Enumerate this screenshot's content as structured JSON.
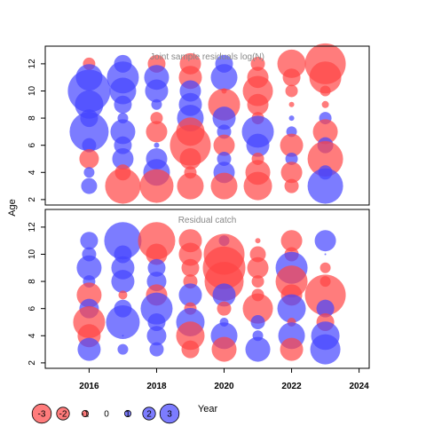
{
  "chart_data": {
    "type": "scatter",
    "description_free": true,
    "shared_x_label": "Year",
    "shared_y_label": "Age",
    "x_ticks": [
      2016,
      2018,
      2020,
      2022,
      2024
    ],
    "xlim": [
      2014.7,
      2024.3
    ],
    "y_ticks": [
      2,
      4,
      6,
      8,
      10,
      12
    ],
    "ylim": [
      1.6,
      13.3
    ],
    "colors": {
      "positive": "#4444ff",
      "negative": "#ff4444",
      "frame": "#000000",
      "title": "#888888"
    },
    "panels": [
      {
        "title": "Joint sample residuals log(N)",
        "points": [
          {
            "x": 2016,
            "y": 12,
            "r": -0.7
          },
          {
            "x": 2016,
            "y": 11,
            "r": 1.5
          },
          {
            "x": 2016,
            "y": 10,
            "r": 2.4
          },
          {
            "x": 2016,
            "y": 9,
            "r": 1.6
          },
          {
            "x": 2016,
            "y": 8,
            "r": 1.0
          },
          {
            "x": 2016,
            "y": 7,
            "r": 2.2
          },
          {
            "x": 2016,
            "y": 6,
            "r": 0.8
          },
          {
            "x": 2016,
            "y": 5,
            "r": -1.1
          },
          {
            "x": 2016,
            "y": 4,
            "r": 0.6
          },
          {
            "x": 2016,
            "y": 3,
            "r": 0.9
          },
          {
            "x": 2017,
            "y": 12,
            "r": 1.0
          },
          {
            "x": 2017,
            "y": 11,
            "r": 1.8
          },
          {
            "x": 2017,
            "y": 10,
            "r": 1.5
          },
          {
            "x": 2017,
            "y": 9,
            "r": 1.0
          },
          {
            "x": 2017,
            "y": 8,
            "r": 0.6
          },
          {
            "x": 2017,
            "y": 7,
            "r": 1.4
          },
          {
            "x": 2017,
            "y": 6,
            "r": 1.0
          },
          {
            "x": 2017,
            "y": 5,
            "r": 1.2
          },
          {
            "x": 2017,
            "y": 4,
            "r": -0.9
          },
          {
            "x": 2017,
            "y": 3,
            "r": -2.0
          },
          {
            "x": 2018,
            "y": 12,
            "r": -1.0
          },
          {
            "x": 2018,
            "y": 11,
            "r": 1.4
          },
          {
            "x": 2018,
            "y": 10,
            "r": 1.3
          },
          {
            "x": 2018,
            "y": 9,
            "r": 0.6
          },
          {
            "x": 2018,
            "y": 8,
            "r": -0.7
          },
          {
            "x": 2018,
            "y": 7,
            "r": -1.2
          },
          {
            "x": 2018,
            "y": 6,
            "r": 0.3
          },
          {
            "x": 2018,
            "y": 5,
            "r": 1.2
          },
          {
            "x": 2018,
            "y": 4,
            "r": 1.5
          },
          {
            "x": 2018,
            "y": 3,
            "r": -1.9
          },
          {
            "x": 2019,
            "y": 12,
            "r": -1.2
          },
          {
            "x": 2019,
            "y": 11,
            "r": -1.3
          },
          {
            "x": 2019,
            "y": 10,
            "r": 1.2
          },
          {
            "x": 2019,
            "y": 9,
            "r": 1.3
          },
          {
            "x": 2019,
            "y": 8,
            "r": 1.5
          },
          {
            "x": 2019,
            "y": 7,
            "r": -1.6
          },
          {
            "x": 2019,
            "y": 6,
            "r": -2.3
          },
          {
            "x": 2019,
            "y": 5,
            "r": -1.2
          },
          {
            "x": 2019,
            "y": 4,
            "r": -0.7
          },
          {
            "x": 2019,
            "y": 3,
            "r": -1.5
          },
          {
            "x": 2020,
            "y": 12,
            "r": 1.0
          },
          {
            "x": 2020,
            "y": 11,
            "r": 1.5
          },
          {
            "x": 2020,
            "y": 10,
            "r": -0.3
          },
          {
            "x": 2020,
            "y": 9,
            "r": -1.8
          },
          {
            "x": 2020,
            "y": 8,
            "r": 1.3
          },
          {
            "x": 2020,
            "y": 7,
            "r": 0.8
          },
          {
            "x": 2020,
            "y": 6,
            "r": -1.2
          },
          {
            "x": 2020,
            "y": 5,
            "r": 0.8
          },
          {
            "x": 2020,
            "y": 4,
            "r": 1.2
          },
          {
            "x": 2020,
            "y": 3,
            "r": -1.5
          },
          {
            "x": 2021,
            "y": 12,
            "r": -0.8
          },
          {
            "x": 2021,
            "y": 11,
            "r": -1.2
          },
          {
            "x": 2021,
            "y": 10,
            "r": -1.7
          },
          {
            "x": 2021,
            "y": 9,
            "r": -1.2
          },
          {
            "x": 2021,
            "y": 8,
            "r": -0.7
          },
          {
            "x": 2021,
            "y": 7,
            "r": 1.8
          },
          {
            "x": 2021,
            "y": 6,
            "r": 1.3
          },
          {
            "x": 2021,
            "y": 5,
            "r": -0.7
          },
          {
            "x": 2021,
            "y": 4,
            "r": -1.4
          },
          {
            "x": 2021,
            "y": 3,
            "r": -1.6
          },
          {
            "x": 2022,
            "y": 12,
            "r": -1.6
          },
          {
            "x": 2022,
            "y": 11,
            "r": -1.0
          },
          {
            "x": 2022,
            "y": 10,
            "r": -0.7
          },
          {
            "x": 2022,
            "y": 9,
            "r": -0.3
          },
          {
            "x": 2022,
            "y": 8,
            "r": 0.3
          },
          {
            "x": 2022,
            "y": 7,
            "r": 0.6
          },
          {
            "x": 2022,
            "y": 6,
            "r": -1.3
          },
          {
            "x": 2022,
            "y": 5,
            "r": 0.7
          },
          {
            "x": 2022,
            "y": 4,
            "r": -1.2
          },
          {
            "x": 2022,
            "y": 3,
            "r": -0.8
          },
          {
            "x": 2023,
            "y": 12,
            "r": -2.3
          },
          {
            "x": 2023,
            "y": 11,
            "r": -1.8
          },
          {
            "x": 2023,
            "y": 10,
            "r": -0.6
          },
          {
            "x": 2023,
            "y": 9,
            "r": -0.4
          },
          {
            "x": 2023,
            "y": 8,
            "r": 0.7
          },
          {
            "x": 2023,
            "y": 7,
            "r": -1.4
          },
          {
            "x": 2023,
            "y": 6,
            "r": 0.9
          },
          {
            "x": 2023,
            "y": 5,
            "r": -2.0
          },
          {
            "x": 2023,
            "y": 4,
            "r": 0.8
          },
          {
            "x": 2023,
            "y": 3,
            "r": 2.0
          }
        ]
      },
      {
        "title": "Residual catch",
        "points": [
          {
            "x": 2016,
            "y": 11,
            "r": 1.0
          },
          {
            "x": 2016,
            "y": 10,
            "r": 0.8
          },
          {
            "x": 2016,
            "y": 9,
            "r": 1.4
          },
          {
            "x": 2016,
            "y": 8,
            "r": 0.7
          },
          {
            "x": 2016,
            "y": 7,
            "r": -1.4
          },
          {
            "x": 2016,
            "y": 6,
            "r": 1.1
          },
          {
            "x": 2016,
            "y": 5,
            "r": -1.8
          },
          {
            "x": 2016,
            "y": 4,
            "r": -1.3
          },
          {
            "x": 2016,
            "y": 3,
            "r": 1.3
          },
          {
            "x": 2017,
            "y": 11,
            "r": 2.1
          },
          {
            "x": 2017,
            "y": 10,
            "r": 1.0
          },
          {
            "x": 2017,
            "y": 9,
            "r": 1.3
          },
          {
            "x": 2017,
            "y": 8,
            "r": 1.3
          },
          {
            "x": 2017,
            "y": 7,
            "r": -0.5
          },
          {
            "x": 2017,
            "y": 6,
            "r": 1.0
          },
          {
            "x": 2017,
            "y": 5,
            "r": 1.9
          },
          {
            "x": 2017,
            "y": 4,
            "r": 0.1
          },
          {
            "x": 2017,
            "y": 3,
            "r": 0.6
          },
          {
            "x": 2018,
            "y": 11,
            "r": -2.1
          },
          {
            "x": 2018,
            "y": 10,
            "r": -1.2
          },
          {
            "x": 2018,
            "y": 9,
            "r": 1.0
          },
          {
            "x": 2018,
            "y": 8,
            "r": 1.1
          },
          {
            "x": 2018,
            "y": 7,
            "r": -1.2
          },
          {
            "x": 2018,
            "y": 6,
            "r": 1.8
          },
          {
            "x": 2018,
            "y": 5,
            "r": 1.0
          },
          {
            "x": 2018,
            "y": 4,
            "r": 1.1
          },
          {
            "x": 2018,
            "y": 3,
            "r": 0.8
          },
          {
            "x": 2019,
            "y": 11,
            "r": -1.3
          },
          {
            "x": 2019,
            "y": 10,
            "r": -1.3
          },
          {
            "x": 2019,
            "y": 9,
            "r": -1.0
          },
          {
            "x": 2019,
            "y": 8,
            "r": -0.8
          },
          {
            "x": 2019,
            "y": 7,
            "r": 1.3
          },
          {
            "x": 2019,
            "y": 6,
            "r": -0.7
          },
          {
            "x": 2019,
            "y": 5,
            "r": 1.6
          },
          {
            "x": 2019,
            "y": 4,
            "r": -1.6
          },
          {
            "x": 2019,
            "y": 3,
            "r": -1.0
          },
          {
            "x": 2020,
            "y": 11,
            "r": 0.6
          },
          {
            "x": 2020,
            "y": 10,
            "r": -2.3
          },
          {
            "x": 2020,
            "y": 9,
            "r": -2.4
          },
          {
            "x": 2020,
            "y": 8,
            "r": -2.2
          },
          {
            "x": 2020,
            "y": 7,
            "r": 1.3
          },
          {
            "x": 2020,
            "y": 6,
            "r": -0.8
          },
          {
            "x": 2020,
            "y": 5,
            "r": 0.5
          },
          {
            "x": 2020,
            "y": 4,
            "r": 1.5
          },
          {
            "x": 2020,
            "y": 3,
            "r": -1.4
          },
          {
            "x": 2021,
            "y": 11,
            "r": -0.3
          },
          {
            "x": 2021,
            "y": 10,
            "r": -0.9
          },
          {
            "x": 2021,
            "y": 9,
            "r": -1.2
          },
          {
            "x": 2021,
            "y": 8,
            "r": -0.7
          },
          {
            "x": 2021,
            "y": 7,
            "r": -0.7
          },
          {
            "x": 2021,
            "y": 6,
            "r": -1.7
          },
          {
            "x": 2021,
            "y": 5,
            "r": 0.8
          },
          {
            "x": 2021,
            "y": 4,
            "r": 0.6
          },
          {
            "x": 2021,
            "y": 3,
            "r": 1.4
          },
          {
            "x": 2022,
            "y": 11,
            "r": -1.2
          },
          {
            "x": 2022,
            "y": 10,
            "r": -0.8
          },
          {
            "x": 2022,
            "y": 9,
            "r": 1.8
          },
          {
            "x": 2022,
            "y": 8,
            "r": -1.8
          },
          {
            "x": 2022,
            "y": 7,
            "r": -1.2
          },
          {
            "x": 2022,
            "y": 6,
            "r": 1.6
          },
          {
            "x": 2022,
            "y": 5,
            "r": -0.5
          },
          {
            "x": 2022,
            "y": 4,
            "r": 1.5
          },
          {
            "x": 2022,
            "y": 3,
            "r": -1.3
          },
          {
            "x": 2023,
            "y": 11,
            "r": 1.2
          },
          {
            "x": 2023,
            "y": 10,
            "r": 0.1
          },
          {
            "x": 2023,
            "y": 9,
            "r": -0.6
          },
          {
            "x": 2023,
            "y": 8,
            "r": -0.6
          },
          {
            "x": 2023,
            "y": 7,
            "r": -2.3
          },
          {
            "x": 2023,
            "y": 6,
            "r": 1.0
          },
          {
            "x": 2023,
            "y": 5,
            "r": -1.0
          },
          {
            "x": 2023,
            "y": 4,
            "r": 1.6
          },
          {
            "x": 2023,
            "y": 3,
            "r": 1.7
          }
        ]
      }
    ],
    "legend": {
      "placement": "bottom-left",
      "values": [
        -3,
        -2,
        -1,
        0,
        1,
        2,
        3
      ],
      "labels": [
        "-3",
        "-2",
        "-1",
        "0",
        "1",
        "2",
        "3"
      ]
    }
  }
}
